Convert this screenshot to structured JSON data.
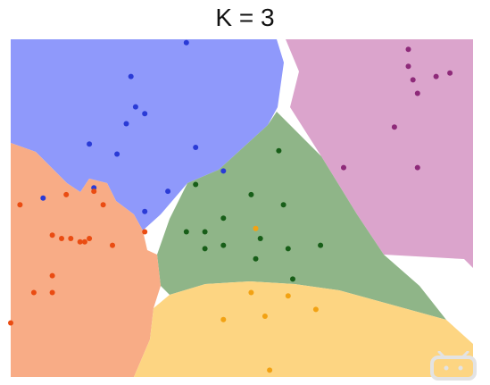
{
  "chart_data": {
    "type": "scatter",
    "title": "K = 3",
    "xlim": [
      0,
      1
    ],
    "ylim": [
      0,
      1
    ],
    "grid": false,
    "legend": "none",
    "regions": [
      {
        "key": "blue",
        "color": "#8f99fb"
      },
      {
        "key": "pink",
        "color": "#dba4cc"
      },
      {
        "key": "green",
        "color": "#8fb588"
      },
      {
        "key": "orange",
        "color": "#f8ac86"
      },
      {
        "key": "yellow",
        "color": "#fdd582"
      }
    ],
    "series": [
      {
        "key": "blue",
        "color": "#2a3bd6",
        "points": [
          [
            0.38,
            0.99
          ],
          [
            0.26,
            0.89
          ],
          [
            0.27,
            0.8
          ],
          [
            0.29,
            0.78
          ],
          [
            0.25,
            0.75
          ],
          [
            0.17,
            0.69
          ],
          [
            0.23,
            0.66
          ],
          [
            0.4,
            0.68
          ],
          [
            0.46,
            0.61
          ],
          [
            0.34,
            0.55
          ],
          [
            0.18,
            0.56
          ],
          [
            0.07,
            0.53
          ],
          [
            0.29,
            0.49
          ]
        ]
      },
      {
        "key": "pink",
        "color": "#8e2a79",
        "points": [
          [
            0.86,
            0.97
          ],
          [
            0.86,
            0.92
          ],
          [
            0.95,
            0.9
          ],
          [
            0.92,
            0.89
          ],
          [
            0.87,
            0.88
          ],
          [
            0.88,
            0.84
          ],
          [
            0.83,
            0.74
          ],
          [
            0.72,
            0.62
          ],
          [
            0.88,
            0.62
          ]
        ]
      },
      {
        "key": "green",
        "color": "#175e18",
        "points": [
          [
            0.58,
            0.67
          ],
          [
            0.4,
            0.57
          ],
          [
            0.52,
            0.54
          ],
          [
            0.59,
            0.51
          ],
          [
            0.46,
            0.47
          ],
          [
            0.38,
            0.43
          ],
          [
            0.42,
            0.43
          ],
          [
            0.46,
            0.39
          ],
          [
            0.42,
            0.38
          ],
          [
            0.54,
            0.41
          ],
          [
            0.6,
            0.38
          ],
          [
            0.67,
            0.39
          ],
          [
            0.53,
            0.35
          ],
          [
            0.61,
            0.29
          ]
        ]
      },
      {
        "key": "orange",
        "color": "#ea4c12",
        "points": [
          [
            0.12,
            0.54
          ],
          [
            0.18,
            0.55
          ],
          [
            0.02,
            0.51
          ],
          [
            0.2,
            0.51
          ],
          [
            0.09,
            0.42
          ],
          [
            0.11,
            0.41
          ],
          [
            0.13,
            0.41
          ],
          [
            0.17,
            0.41
          ],
          [
            0.15,
            0.4
          ],
          [
            0.16,
            0.4
          ],
          [
            0.22,
            0.39
          ],
          [
            0.29,
            0.43
          ],
          [
            0.09,
            0.3
          ],
          [
            0.05,
            0.25
          ],
          [
            0.09,
            0.25
          ],
          [
            0.0,
            0.16
          ]
        ]
      },
      {
        "key": "yellow",
        "color": "#f2a213",
        "points": [
          [
            0.53,
            0.44
          ],
          [
            0.52,
            0.25
          ],
          [
            0.6,
            0.24
          ],
          [
            0.66,
            0.2
          ],
          [
            0.46,
            0.17
          ],
          [
            0.55,
            0.18
          ],
          [
            0.56,
            0.02
          ]
        ]
      }
    ]
  },
  "watermark_logo": "bilibili-tv-logo"
}
